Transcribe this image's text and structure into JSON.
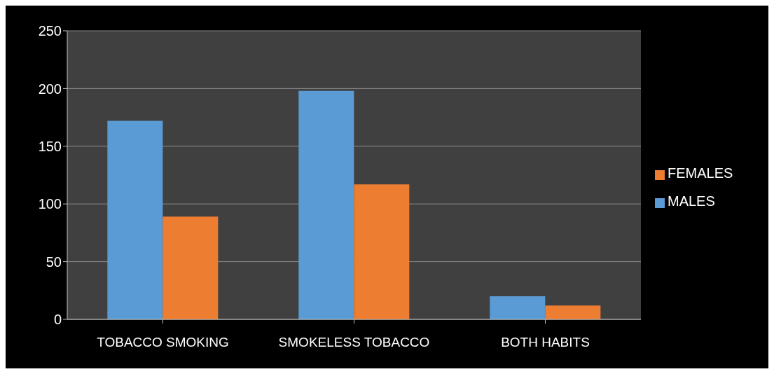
{
  "chart_data": {
    "type": "bar",
    "categories": [
      "TOBACCO SMOKING",
      "SMOKELESS TOBACCO",
      "BOTH HABITS"
    ],
    "series": [
      {
        "name": "MALES",
        "color": "#5b9bd5",
        "values": [
          172,
          198,
          20
        ]
      },
      {
        "name": "FEMALES",
        "color": "#ed7d31",
        "values": [
          89,
          117,
          12
        ]
      }
    ],
    "ylim": [
      0,
      250
    ],
    "yticks": [
      0,
      50,
      100,
      150,
      200,
      250
    ],
    "grid": "y",
    "legend": "right"
  }
}
